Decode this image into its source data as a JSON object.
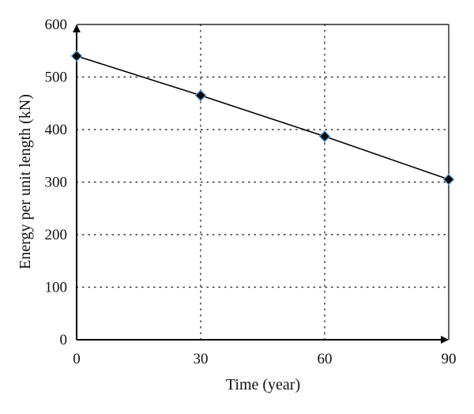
{
  "chart_data": {
    "type": "line",
    "title": "",
    "xlabel": "Time (year)",
    "ylabel": "Energy per unit length (kN)",
    "x": [
      0,
      30,
      60,
      90
    ],
    "series": [
      {
        "values": [
          540,
          465,
          387,
          305
        ]
      }
    ],
    "xlim": [
      0,
      90
    ],
    "ylim": [
      0,
      600
    ],
    "xticks": [
      "0",
      "30",
      "60",
      "90"
    ],
    "yticks": [
      "0",
      "100",
      "200",
      "300",
      "400",
      "500",
      "600"
    ],
    "grid": true,
    "grid_style": "dotted",
    "axis_arrows": true,
    "legend": "none",
    "colors": {
      "line": "#000000",
      "marker_fill": "#0a0a0a",
      "marker_edge": "#5b9bd5",
      "grid": "#333333",
      "axis": "#000000"
    }
  }
}
